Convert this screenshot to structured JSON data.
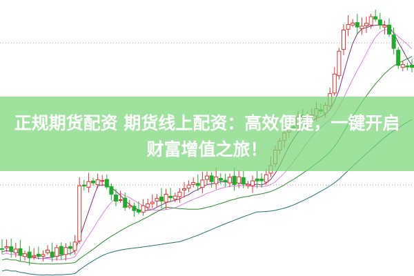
{
  "banner": {
    "line1": "正规期货配资 期货线上配资：高效便捷，一键开启",
    "line2": "财富增值之旅！"
  },
  "colors": {
    "up": "#e0302c",
    "down": "#1faa2a",
    "banner": "#8ddf8d",
    "ma_short": "#7a2c7a",
    "ma_mid": "#e080e0",
    "ma_long": "#2a8a2a",
    "ma_longest": "#1f6f6f"
  }
}
